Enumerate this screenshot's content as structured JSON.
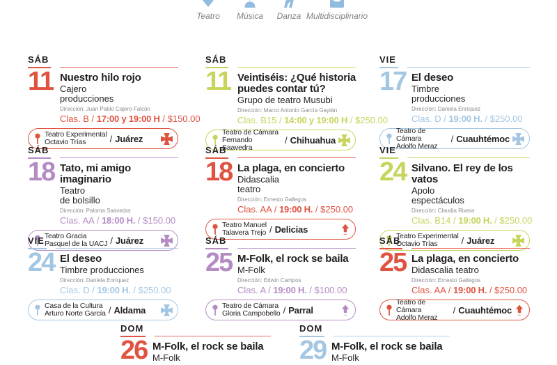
{
  "colors": {
    "red": "#DF5340",
    "green": "#C8D45C",
    "blue": "#A3C6E3",
    "purple": "#B48CC3",
    "legend_icon": "#92BCDF",
    "title_text": "#231F20",
    "credit_gray": "#8A8C8E"
  },
  "ui": {
    "sep": "/"
  },
  "legend": {
    "items": [
      {
        "icon": "teatro-icon",
        "label": "Teatro"
      },
      {
        "icon": "musica-icon",
        "label": "Música"
      },
      {
        "icon": "danza-icon",
        "label": "Danza"
      },
      {
        "icon": "multidisciplinario-icon",
        "label": "Multidisciplinario"
      }
    ]
  },
  "cards": [
    {
      "day": "SÁB",
      "date": "11",
      "color": "red",
      "title": "Nuestro hilo rojo",
      "organizer": "Cajero\nproducciones",
      "direccion": "Dirección: Juan Pablo Cajero Falcón",
      "clas": "Clas. B",
      "time": "17:00 y 19:00 H",
      "price": "$150.00",
      "venue": "Teatro Experimental\nOctavio Trías",
      "city": "Juárez",
      "region_icon": "cross"
    },
    {
      "day": "SÁB",
      "date": "11",
      "color": "green",
      "title": "Veintiséis: ¿Qué historia puedes contar tú?",
      "organizer": "Grupo de teatro Musubi",
      "direccion": "Dirección: Marco Antonio García Gaytán",
      "clas": "Clas. B15",
      "time": "14:00 y 19:00 H",
      "price": "$250.00",
      "venue": "Teatro de Cámara\nFernando Saavedra",
      "city": "Chihuahua",
      "region_icon": "cross"
    },
    {
      "day": "VIE",
      "date": "17",
      "color": "blue",
      "title": "El deseo",
      "organizer": "Timbre\nproducciones",
      "direccion": "Dirección: Daniela Enríquez",
      "clas": "Clas. D",
      "time": "19:00 H.",
      "price": "$250.00",
      "venue": "Teatro de Cámara\nAdolfo Meraz",
      "city": "Cuauhtémoc",
      "region_icon": "cross"
    },
    {
      "day": "SÁB",
      "date": "18",
      "color": "purple",
      "title": "Tato, mi amigo imaginario",
      "organizer": "Teatro\nde bolsillo",
      "direccion": "Dirección: Paloma Saavedra",
      "clas": "Clas. AA",
      "time": "18:00 H.",
      "price": "$150.00",
      "venue": "Teatro Gracia\nPasquel de la UACJ",
      "city": "Juárez",
      "region_icon": "cross"
    },
    {
      "day": "SÁB",
      "date": "18",
      "color": "red",
      "title": "La plaga, en concierto",
      "organizer": "Didascalia\nteatro",
      "direccion": "Dirección: Ernesto Gallegos",
      "clas": "Clas. AA",
      "time": "19:00 H.",
      "price": "$250.00",
      "venue": "Teatro Manuel\nTalavera Trejo",
      "city": "Delicias",
      "region_icon": "arrow"
    },
    {
      "day": "VIE",
      "date": "24",
      "color": "green",
      "title": "Silvano. El rey de los vatos",
      "organizer": "Apolo\nespectáculos",
      "direccion": "Dirección: Claudia Rivera",
      "clas": "Clas. B14",
      "time": "19:00 H.",
      "price": "$250.00",
      "venue": "Teatro Experimental\nOctavio Trías",
      "city": "Juárez",
      "region_icon": "cross"
    },
    {
      "day": "VIE",
      "date": "24",
      "color": "blue",
      "title": "El deseo",
      "organizer": "Timbre producciones",
      "direccion": "Dirección: Daniela Enríquez",
      "clas": "Clas. D",
      "time": "19:00 H.",
      "price": "$250.00",
      "venue": "Casa de la Cultura\nArturo Norte García",
      "city": "Aldama",
      "region_icon": "cross"
    },
    {
      "day": "SÁB",
      "date": "25",
      "color": "purple",
      "title": "M-Folk, el rock se baila",
      "organizer": "M-Folk",
      "direccion": "Dirección: Edwin Campos",
      "clas": "Clas. A",
      "time": "19:00 H.",
      "price": "$100.00",
      "venue": "Teatro de Cámara\nGloria Campobello",
      "city": "Parral",
      "region_icon": "arrow"
    },
    {
      "day": "SÁB",
      "date": "25",
      "color": "red",
      "title": "La plaga, en concierto",
      "organizer": "Didascalia teatro",
      "direccion": "Dirección: Ernesto Gallegos",
      "clas": "Clas. AA",
      "time": "19:00 H.",
      "price": "$250.00",
      "venue": "Teatro de Cámara\nAdolfo Meraz",
      "city": "Cuauhtémoc",
      "region_icon": "arrow"
    },
    {
      "day": "DOM",
      "date": "26",
      "color": "red",
      "title": "M-Folk, el rock se baila",
      "organizer": "M-Folk"
    },
    {
      "day": "DOM",
      "date": "29",
      "color": "blue",
      "title": "M-Folk, el rock se baila",
      "organizer": "M-Folk"
    }
  ]
}
